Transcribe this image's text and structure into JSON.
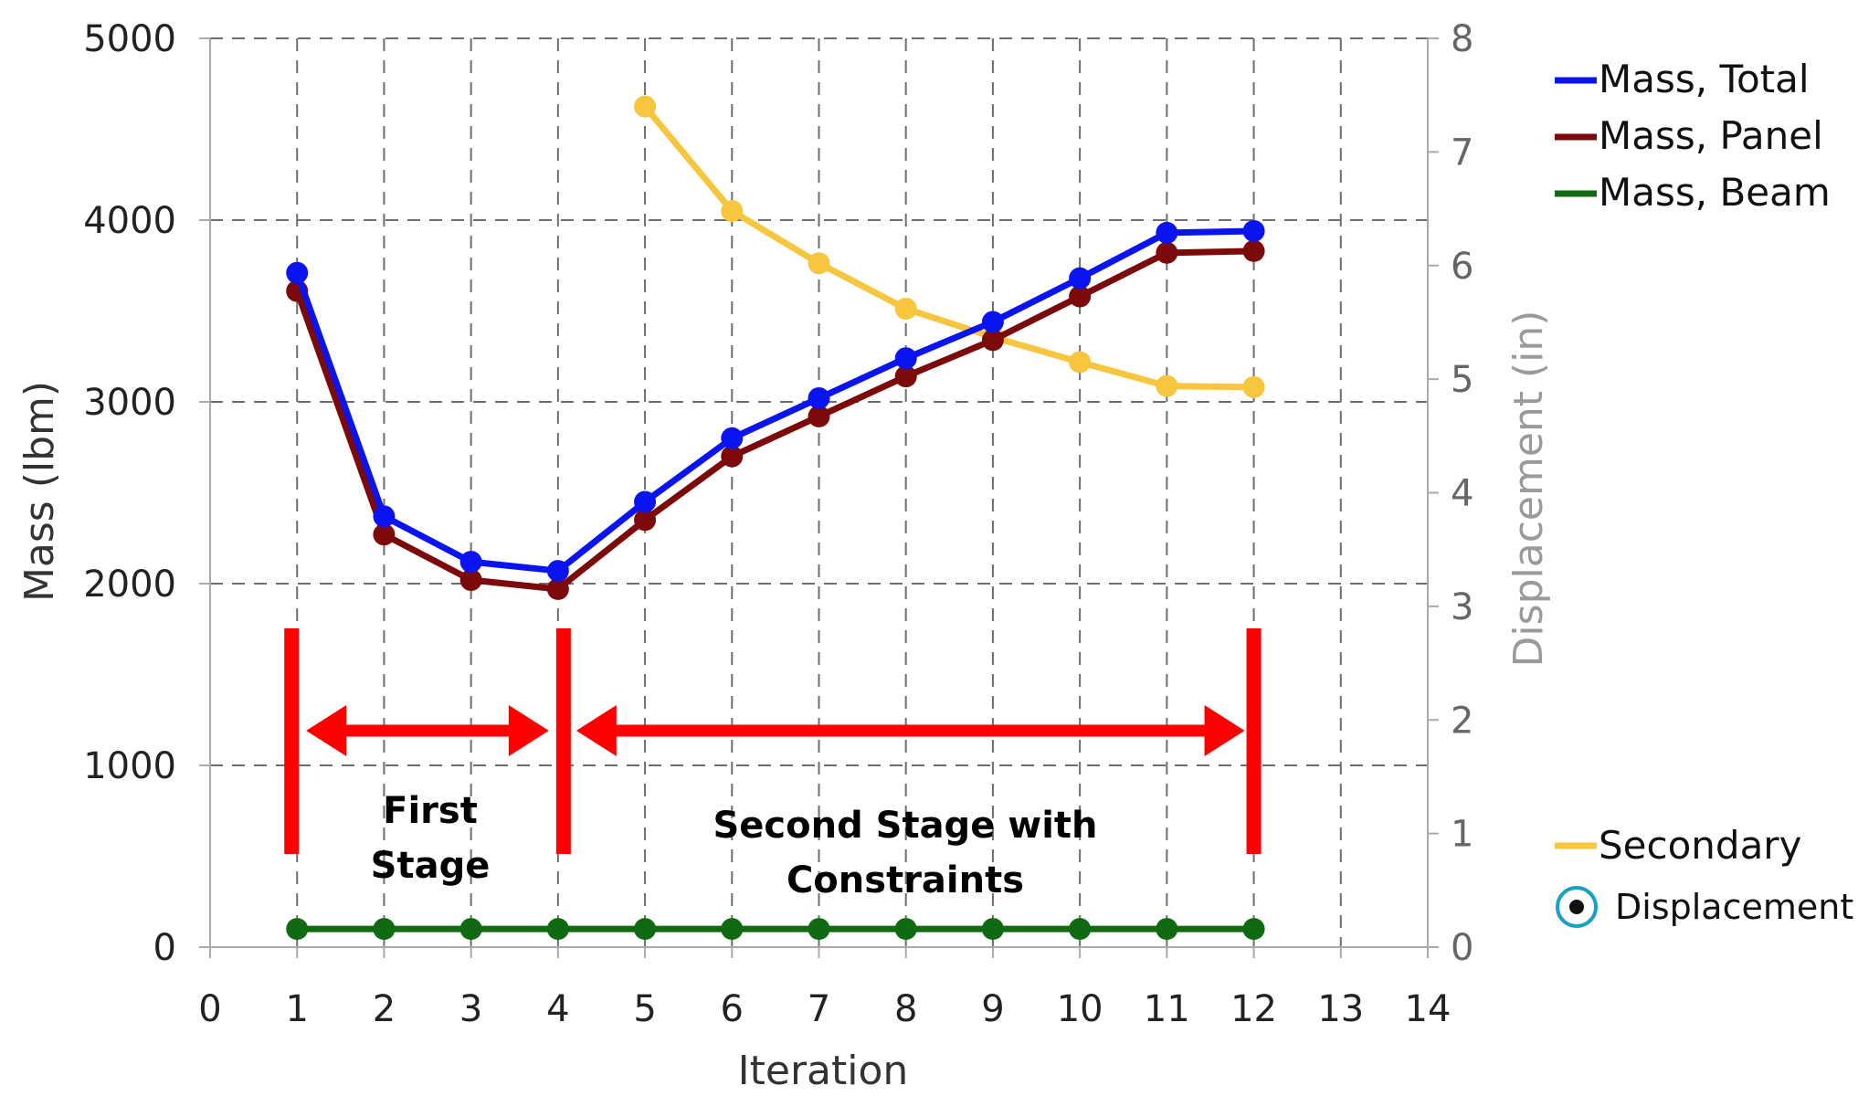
{
  "chart_data": {
    "type": "line",
    "xlabel": "Iteration",
    "ylabel": "Mass (lbm)",
    "y2label": "Displacement (in)",
    "xlim": [
      0,
      14
    ],
    "ylim": [
      0,
      5000
    ],
    "y2lim": [
      0,
      8
    ],
    "x_ticks": [
      "0",
      "1",
      "2",
      "3",
      "4",
      "5",
      "6",
      "7",
      "8",
      "9",
      "10",
      "11",
      "12",
      "13",
      "14"
    ],
    "y_ticks": [
      "0",
      "1000",
      "2000",
      "3000",
      "4000",
      "5000"
    ],
    "y2_ticks": [
      "0",
      "1",
      "2",
      "3",
      "4",
      "5",
      "6",
      "7",
      "8"
    ],
    "grid": true,
    "legend_position": "right",
    "series": [
      {
        "name": "Mass, Total",
        "color": "#0a14f0",
        "axis": "left",
        "x": [
          1,
          2,
          3,
          4,
          5,
          6,
          7,
          8,
          9,
          10,
          11,
          12
        ],
        "values": [
          3710,
          2370,
          2120,
          2070,
          2450,
          2800,
          3020,
          3240,
          3440,
          3680,
          3930,
          3940
        ]
      },
      {
        "name": "Mass, Panel",
        "color": "#7d0a0a",
        "axis": "left",
        "x": [
          1,
          2,
          3,
          4,
          5,
          6,
          7,
          8,
          9,
          10,
          11,
          12
        ],
        "values": [
          3610,
          2270,
          2020,
          1970,
          2350,
          2700,
          2920,
          3140,
          3340,
          3580,
          3820,
          3830
        ]
      },
      {
        "name": "Mass, Beam",
        "color": "#0f6a12",
        "axis": "left",
        "x": [
          1,
          2,
          3,
          4,
          5,
          6,
          7,
          8,
          9,
          10,
          11,
          12
        ],
        "values": [
          100,
          100,
          100,
          100,
          100,
          100,
          100,
          100,
          100,
          100,
          100,
          100
        ]
      },
      {
        "name": "Displacement",
        "color": "#f7c53e",
        "axis": "right",
        "x": [
          5,
          6,
          7,
          8,
          9,
          10,
          11,
          12
        ],
        "values": [
          7.4,
          6.48,
          6.02,
          5.62,
          5.37,
          5.15,
          4.94,
          4.93
        ]
      }
    ],
    "legend_groups": {
      "secondary_label": "Secondary",
      "secondary_items": [
        "Displacement"
      ]
    },
    "annotations": {
      "stage1": {
        "line1": "First",
        "line2": "Stage",
        "from_x": 1,
        "to_x": 4
      },
      "stage2": {
        "line1": "Second Stage with",
        "line2": "Constraints",
        "from_x": 4,
        "to_x": 12
      },
      "marker_color": "#ff0000"
    }
  }
}
